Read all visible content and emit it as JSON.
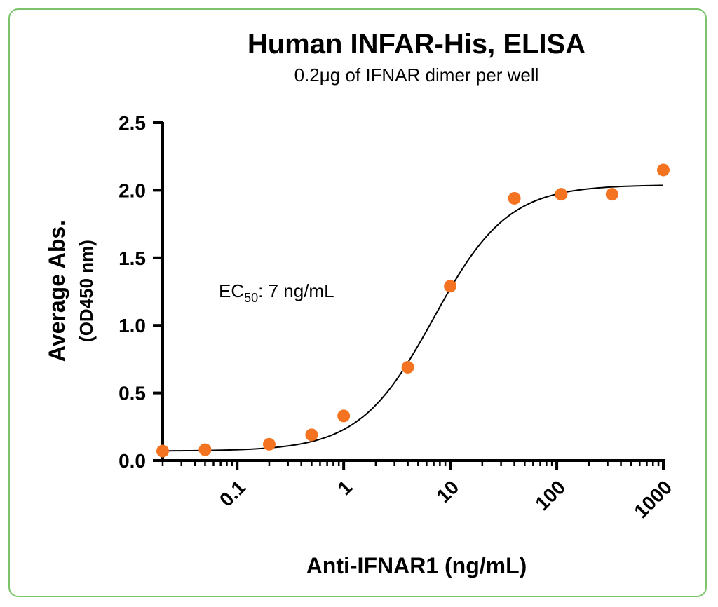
{
  "chart_data": {
    "type": "scatter",
    "title": "Human INFAR-His, ELISA",
    "subtitle": "0.2μg of IFNAR dimer per well",
    "xlabel": "Anti-IFNAR1 (ng/mL)",
    "ylabel": "Average Abs.",
    "ylabel_unit": "(OD450 nm)",
    "x_scale": "log",
    "xlim": [
      0.02,
      1000
    ],
    "ylim": [
      0,
      2.5
    ],
    "x_ticks": [
      {
        "value": 0.1,
        "label": "0.1"
      },
      {
        "value": 1,
        "label": "1"
      },
      {
        "value": 10,
        "label": "10"
      },
      {
        "value": 100,
        "label": "100"
      },
      {
        "value": 1000,
        "label": "1000"
      }
    ],
    "y_ticks": [
      {
        "value": 0,
        "label": "0.0"
      },
      {
        "value": 0.5,
        "label": "0.5"
      },
      {
        "value": 1.0,
        "label": "1.0"
      },
      {
        "value": 1.5,
        "label": "1.5"
      },
      {
        "value": 2.0,
        "label": "2.0"
      },
      {
        "value": 2.5,
        "label": "2.5"
      }
    ],
    "annotation": {
      "prefix": "EC",
      "subscript": "50",
      "suffix": ": 7 ng/mL"
    },
    "series": [
      {
        "x": [
          0.02,
          0.05,
          0.2,
          0.5,
          1,
          4,
          10,
          40,
          110,
          330,
          1000
        ],
        "y": [
          0.07,
          0.08,
          0.12,
          0.19,
          0.33,
          0.69,
          1.29,
          1.94,
          1.97,
          1.97,
          2.15
        ],
        "marker_color": "#f47321"
      }
    ],
    "fit_curve": {
      "model": "4PL",
      "bottom": 0.07,
      "top": 2.04,
      "ec50": 7,
      "hill": 1.25,
      "color": "#000000"
    },
    "grid": false,
    "legend": "none"
  }
}
